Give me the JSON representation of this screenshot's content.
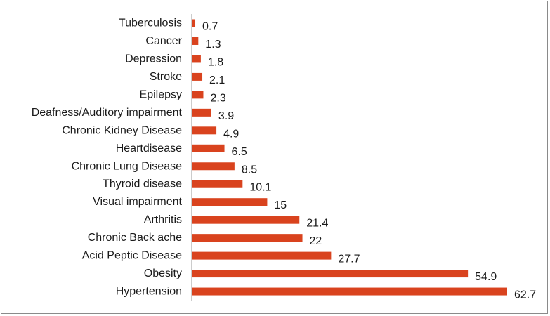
{
  "chart_data": {
    "type": "bar",
    "orientation": "horizontal",
    "title": "",
    "xlabel": "",
    "ylabel": "",
    "categories": [
      "Tuberculosis",
      "Cancer",
      "Depression",
      "Stroke",
      "Epilepsy",
      "Deafness/Auditory impairment",
      "Chronic Kidney Disease",
      "Heartdisease",
      "Chronic Lung Disease",
      "Thyroid disease",
      "Visual impairment",
      "Arthritis",
      "Chronic Back ache",
      "Acid Peptic Disease",
      "Obesity",
      "Hypertension"
    ],
    "values": [
      0.7,
      1.3,
      1.8,
      2.1,
      2.3,
      3.9,
      4.9,
      6.5,
      8.5,
      10.1,
      15,
      21.4,
      22,
      27.7,
      54.9,
      62.7
    ],
    "value_labels": [
      "0.7",
      "1.3",
      "1.8",
      "2.1",
      "2.3",
      "3.9",
      "4.9",
      "6.5",
      "8.5",
      "10.1",
      "15",
      "21.4",
      "22",
      "27.7",
      "54.9",
      "62.7"
    ],
    "xlim": [
      0,
      62.7
    ],
    "grid": false,
    "legend": "none",
    "bar_color": "#d9431e",
    "axis_color": "#9a9a9a"
  }
}
